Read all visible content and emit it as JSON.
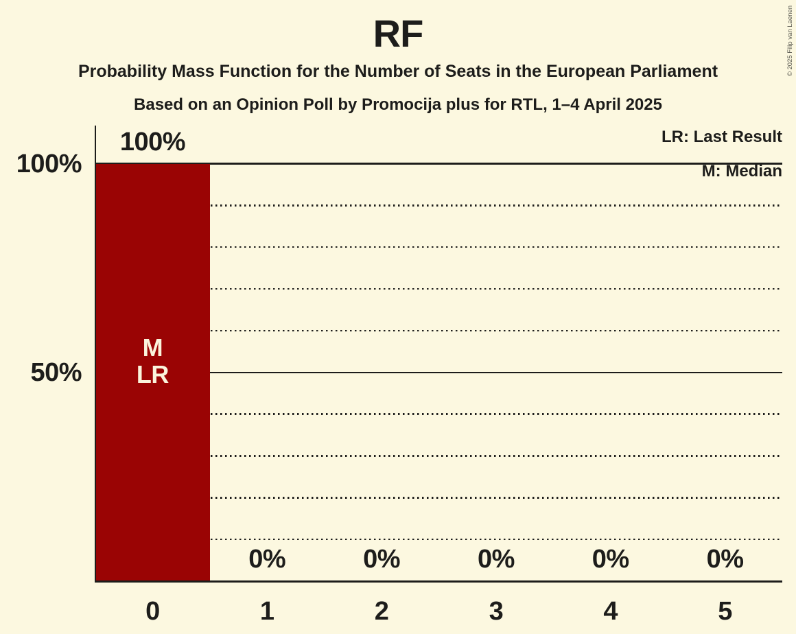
{
  "title": "RF",
  "subtitle1": "Probability Mass Function for the Number of Seats in the European Parliament",
  "subtitle2": "Based on an Opinion Poll by Promocija plus for RTL, 1–4 April 2025",
  "copyright": "© 2025 Filip van Laenen",
  "colors": {
    "background": "#FCF8E0",
    "bar": "#9A0404",
    "text": "#1D1D1B",
    "bar_annotation_text": "#FBF4DC"
  },
  "chart_data": {
    "type": "bar",
    "title": "RF",
    "categories": [
      "0",
      "1",
      "2",
      "3",
      "4",
      "5"
    ],
    "values": [
      100,
      0,
      0,
      0,
      0,
      0
    ],
    "value_labels": [
      "100%",
      "0%",
      "0%",
      "0%",
      "0%",
      "0%"
    ],
    "ylim": [
      0,
      100
    ],
    "y_ticks": [
      {
        "label": "100%",
        "value": 100
      },
      {
        "label": "50%",
        "value": 50
      }
    ],
    "grid": {
      "solid_percent": [
        50,
        100
      ],
      "dotted_percent": [
        10,
        20,
        30,
        40,
        60,
        70,
        80,
        90
      ]
    },
    "annotations": [
      {
        "category": "0",
        "lines": [
          "M",
          "LR"
        ]
      }
    ],
    "legend": {
      "last_result": "LR: Last Result",
      "median": "M: Median"
    },
    "legend_position": "top-right",
    "grid_on": true
  }
}
